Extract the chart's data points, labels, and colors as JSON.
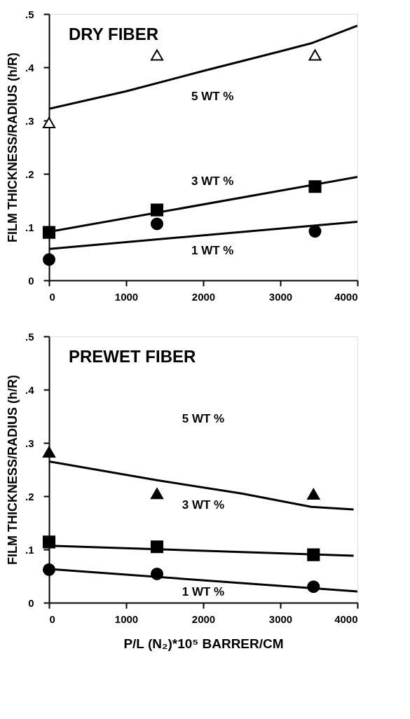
{
  "chart_data": [
    {
      "type": "scatter",
      "title": "DRY FIBER",
      "ylabel": "FILM THICKNESS/RADIUS (h/R)",
      "xlim": [
        0,
        4000
      ],
      "xticks": [
        0,
        1000,
        2000,
        3000,
        4000
      ],
      "ylim": [
        0,
        0.5
      ],
      "yticks": [
        0,
        {
          "value": 0.1,
          "label": ".1"
        },
        {
          "value": 0.2,
          "label": ".2"
        },
        {
          "value": 0.3,
          "label": ".3"
        },
        {
          "value": 0.4,
          "label": ".4"
        },
        {
          "value": 0.5,
          "label": ".5"
        }
      ],
      "grid": false,
      "series": [
        {
          "type": "line",
          "color": "#000000",
          "x": [
            0,
            1000,
            2000,
            3000,
            3400,
            4000
          ],
          "values": [
            0.322,
            0.355,
            0.393,
            0.43,
            0.445,
            0.478
          ]
        },
        {
          "type": "line",
          "color": "#000000",
          "x": [
            0,
            4000
          ],
          "values": [
            0.091,
            0.194
          ]
        },
        {
          "type": "line",
          "color": "#000000",
          "x": [
            0,
            4000
          ],
          "values": [
            0.059,
            0.11
          ]
        },
        {
          "marker": "triangle",
          "color": "#ffffff",
          "x": [
            0,
            1400,
            3450
          ],
          "values": [
            0.296,
            0.423,
            0.423
          ]
        },
        {
          "marker": "square",
          "color": "#000000",
          "x": [
            0,
            1400,
            3450
          ],
          "values": [
            0.09,
            0.132,
            0.176
          ]
        },
        {
          "marker": "circle",
          "color": "#000000",
          "x": [
            0,
            1400,
            3450
          ],
          "values": [
            0.039,
            0.106,
            0.092
          ]
        }
      ],
      "annotations": [
        "5 WT %",
        "3 WT %",
        "1 WT %"
      ]
    },
    {
      "type": "scatter",
      "title": "PREWET FIBER",
      "xlabel": "P/L (N₂)*10⁵ BARRER/CM",
      "ylabel": "FILM THICKNESS/RADIUS (h/R)",
      "xlim": [
        0,
        4000
      ],
      "xticks": [
        0,
        1000,
        2000,
        3000,
        4000
      ],
      "ylim": [
        0,
        0.5
      ],
      "yticks": [
        0,
        {
          "value": 0.1,
          "label": ".1"
        },
        {
          "value": 0.2,
          "label": ".2"
        },
        {
          "value": 0.3,
          "label": ".3"
        },
        {
          "value": 0.4,
          "label": ".4"
        },
        {
          "value": 0.5,
          "label": ".5"
        }
      ],
      "grid": false,
      "series": [
        {
          "type": "line",
          "color": "#000000",
          "x": [
            0,
            1400,
            2500,
            3400,
            3950
          ],
          "values": [
            0.265,
            0.23,
            0.205,
            0.18,
            0.175
          ]
        },
        {
          "type": "line",
          "color": "#000000",
          "x": [
            0,
            3950
          ],
          "values": [
            0.107,
            0.088
          ]
        },
        {
          "type": "line",
          "color": "#000000",
          "x": [
            0,
            4000
          ],
          "values": [
            0.063,
            0.021
          ]
        },
        {
          "marker": "triangle",
          "color": "#000000",
          "x": [
            0,
            1400,
            3430
          ],
          "values": [
            0.283,
            0.205,
            0.204
          ]
        },
        {
          "marker": "square",
          "color": "#000000",
          "x": [
            0,
            1400,
            3430
          ],
          "values": [
            0.114,
            0.105,
            0.09
          ]
        },
        {
          "marker": "circle",
          "color": "#000000",
          "x": [
            0,
            1400,
            3430
          ],
          "values": [
            0.062,
            0.054,
            0.03
          ]
        }
      ],
      "annotations": [
        "5 WT %",
        "3 WT %",
        "1 WT %"
      ]
    }
  ]
}
